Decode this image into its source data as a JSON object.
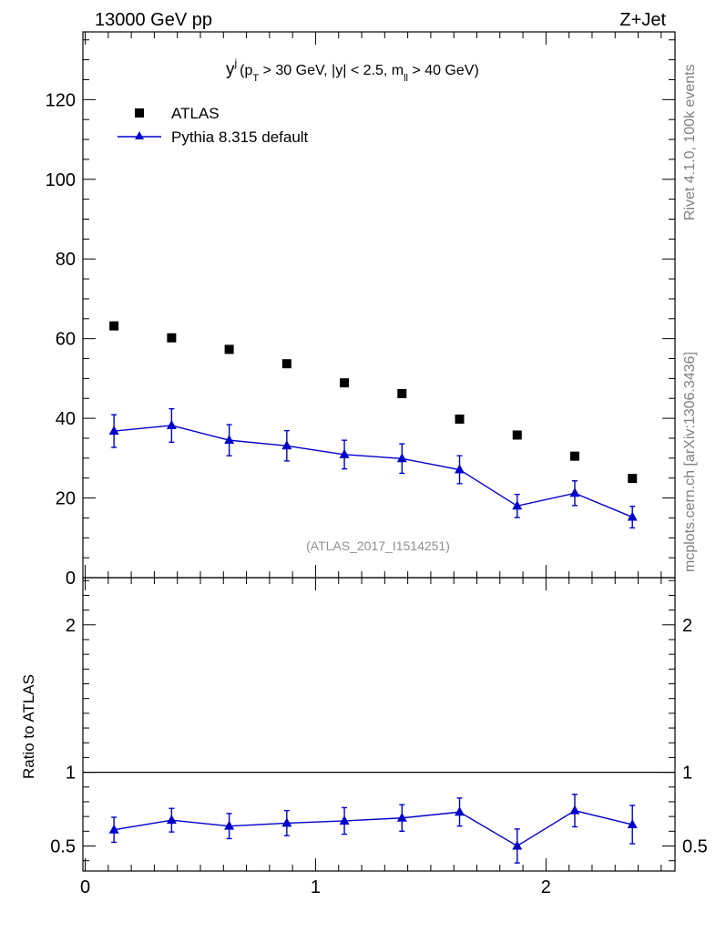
{
  "header": {
    "left_label": "13000 GeV pp",
    "right_label": "Z+Jet"
  },
  "side_labels": {
    "rivet": "Rivet 4.1.0,  100k events",
    "mcplots": "mcplots.cern.ch [arXiv:1306.3436]"
  },
  "colors": {
    "data": "#000000",
    "mc": "#0000cc"
  },
  "chart_data": [
    {
      "type": "scatter",
      "panel": "main",
      "title_main": "y",
      "title_sup": "j",
      "title_sub_pt": "T",
      "title_sub_m": "ll",
      "title_part1": "(p",
      "title_part2": " > 30 GeV, |y| < 2.5, m",
      "title_part3": " > 40 GeV)",
      "xlabel": "",
      "ylabel": "",
      "xlim": [
        -0.01,
        2.56
      ],
      "ylim": [
        0,
        137
      ],
      "y_major_ticks": [
        0,
        20,
        40,
        60,
        80,
        100,
        120
      ],
      "y_tick_labels": [
        "0",
        "20",
        "40",
        "60",
        "80",
        "100",
        "120"
      ],
      "x_major_ticks": [
        0,
        1,
        2
      ],
      "watermark": "(ATLAS_2017_I1514251)",
      "legend_position": "top-left",
      "x": [
        0.125,
        0.375,
        0.625,
        0.875,
        1.125,
        1.375,
        1.625,
        1.875,
        2.125,
        2.375
      ],
      "series": [
        {
          "name": "ATLAS",
          "marker": "square",
          "values": [
            63.2,
            60.2,
            57.3,
            53.7,
            48.9,
            46.2,
            39.8,
            35.8,
            30.5,
            24.9
          ]
        },
        {
          "name": "Pythia 8.315 default",
          "marker": "triangle",
          "line": true,
          "values": [
            36.8,
            38.2,
            34.5,
            33.1,
            30.9,
            29.9,
            27.1,
            18.0,
            21.2,
            15.2
          ],
          "err": [
            4.1,
            4.2,
            3.9,
            3.8,
            3.6,
            3.7,
            3.5,
            2.9,
            3.1,
            2.7
          ]
        }
      ]
    },
    {
      "type": "line",
      "panel": "ratio",
      "ylabel": "Ratio to ATLAS",
      "xlim": [
        -0.01,
        2.56
      ],
      "ylim": [
        0.33,
        2.32
      ],
      "reference_line": 1,
      "y_tick_labels": [
        {
          "value": 0.5,
          "label": "0.5"
        },
        {
          "value": 1,
          "label": "1"
        },
        {
          "value": 2,
          "label": "2"
        }
      ],
      "x_tick_labels": [
        {
          "value": 0,
          "label": "0"
        },
        {
          "value": 1,
          "label": "1"
        },
        {
          "value": 2,
          "label": "2"
        }
      ],
      "x": [
        0.125,
        0.375,
        0.625,
        0.875,
        1.125,
        1.375,
        1.625,
        1.875,
        2.125,
        2.375
      ],
      "series": [
        {
          "name": "Pythia 8.315 default",
          "values": [
            0.61,
            0.675,
            0.635,
            0.655,
            0.67,
            0.69,
            0.73,
            0.5,
            0.74,
            0.645
          ],
          "err": [
            0.085,
            0.08,
            0.085,
            0.085,
            0.09,
            0.09,
            0.095,
            0.115,
            0.11,
            0.13
          ]
        }
      ]
    }
  ]
}
